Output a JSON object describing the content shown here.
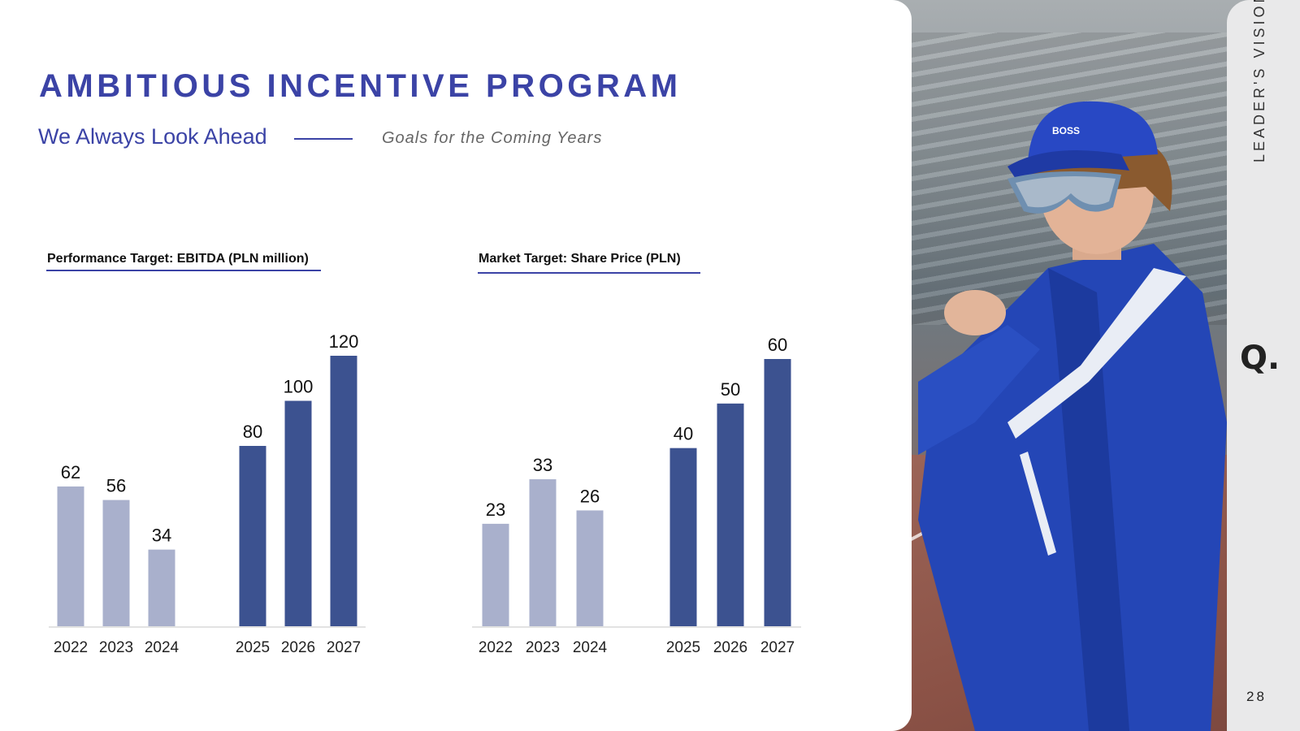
{
  "header": {
    "title": "AMBITIOUS INCENTIVE PROGRAM",
    "subtitle": "We Always Look Ahead",
    "tagline": "Goals for the Coming Years"
  },
  "sidebar": {
    "section_label": "LEADER'S VISION",
    "logo": "Q.",
    "page_number": "28"
  },
  "colors": {
    "accent": "#3b43a6",
    "bar_past": "#a9b0cc",
    "bar_future": "#3c5290"
  },
  "photo": {
    "cap_text": "BOSS"
  },
  "chart_data": [
    {
      "type": "bar",
      "title": "Performance Target: EBITDA (PLN million)",
      "categories": [
        "2022",
        "2023",
        "2024",
        "2025",
        "2026",
        "2027"
      ],
      "values": [
        62,
        56,
        34,
        80,
        100,
        120
      ],
      "groups": [
        "past",
        "past",
        "past",
        "target",
        "target",
        "target"
      ],
      "ylim": [
        0,
        120
      ],
      "grid": false,
      "data_labels": true
    },
    {
      "type": "bar",
      "title": "Market Target: Share Price (PLN)",
      "categories": [
        "2022",
        "2023",
        "2024",
        "2025",
        "2026",
        "2027"
      ],
      "values": [
        23,
        33,
        26,
        40,
        50,
        60
      ],
      "groups": [
        "past",
        "past",
        "past",
        "target",
        "target",
        "target"
      ],
      "ylim": [
        0,
        60
      ],
      "grid": false,
      "data_labels": true
    }
  ]
}
